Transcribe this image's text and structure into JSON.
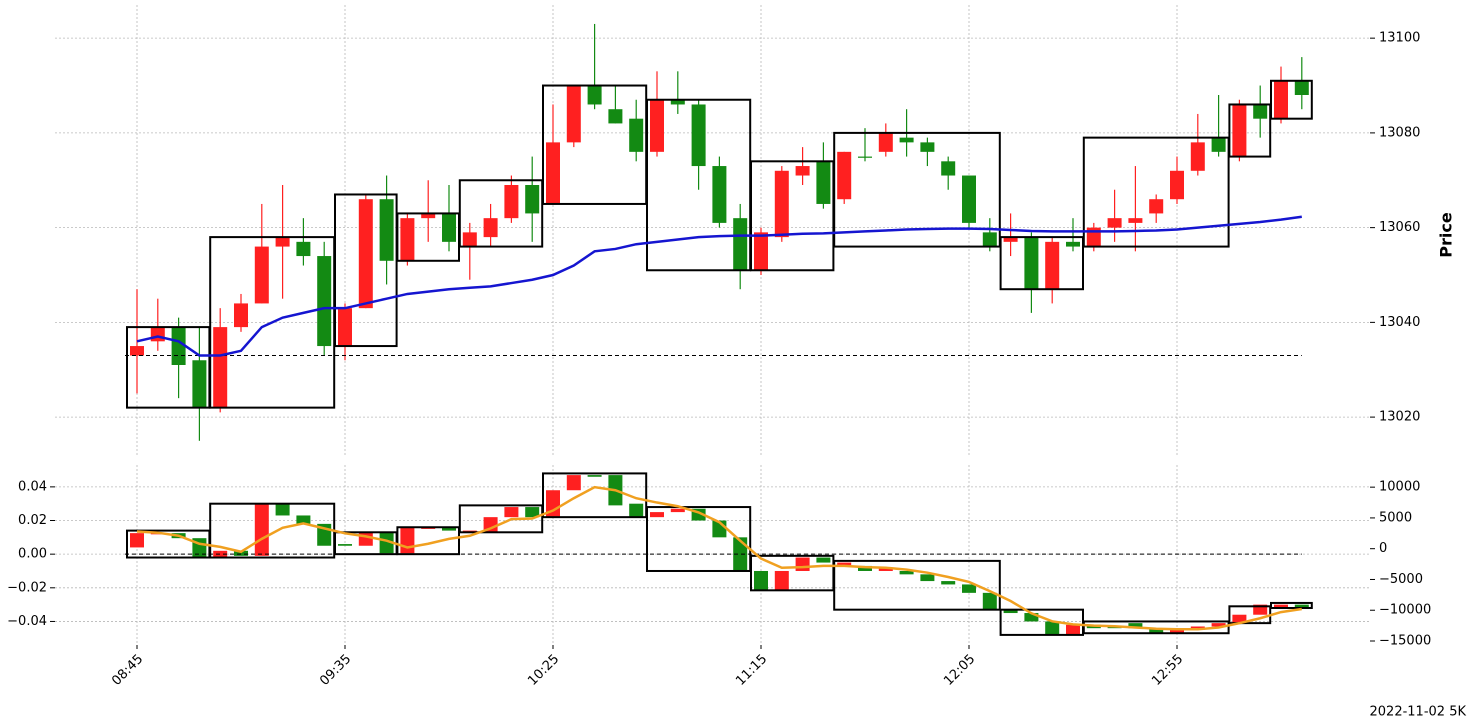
{
  "chart_data": [
    {
      "type": "candlestick",
      "y_axis_side": "right",
      "ylabel": "Price",
      "grid": true,
      "up_color": "#ff2020",
      "down_color": "#138a13",
      "open": [
        13033,
        13036,
        13039,
        13032,
        13022,
        13039,
        13044,
        13056,
        13057,
        13054,
        13035,
        13043,
        13066,
        13053,
        13062,
        13063,
        13056,
        13058,
        13062,
        13069,
        13065,
        13078,
        13090,
        13085,
        13083,
        13076,
        13087,
        13086,
        13073,
        13062,
        13051,
        13058,
        13071,
        13074,
        13066,
        13075,
        13076,
        13079,
        13078,
        13074,
        13071,
        13059,
        13057,
        13058,
        13047,
        13057,
        13056,
        13060,
        13061,
        13063,
        13066,
        13072,
        13079,
        13075,
        13086,
        13083,
        13091
      ],
      "high": [
        13047,
        13045,
        13041,
        13039,
        13043,
        13046,
        13065,
        13069,
        13062,
        13057,
        13044,
        13067,
        13071,
        13063,
        13070,
        13069,
        13061,
        13065,
        13071,
        13075,
        13086,
        13090,
        13103,
        13090,
        13087,
        13093,
        13093,
        13087,
        13075,
        13065,
        13060,
        13073,
        13077,
        13078,
        13076,
        13081,
        13082,
        13085,
        13079,
        13075,
        13071,
        13062,
        13063,
        13059,
        13058,
        13062,
        13061,
        13068,
        13073,
        13067,
        13075,
        13084,
        13088,
        13087,
        13090,
        13094,
        13096
      ],
      "low": [
        13025,
        13034,
        13024,
        13015,
        13021,
        13038,
        13044,
        13045,
        13052,
        13033,
        13032,
        13043,
        13048,
        13052,
        13057,
        13055,
        13049,
        13056,
        13061,
        13057,
        13065,
        13077,
        13085,
        13082,
        13074,
        13075,
        13084,
        13068,
        13060,
        13047,
        13050,
        13057,
        13069,
        13064,
        13065,
        13074,
        13075,
        13075,
        13073,
        13068,
        13060,
        13055,
        13054,
        13042,
        13044,
        13055,
        13055,
        13057,
        13055,
        13061,
        13065,
        13071,
        13075,
        13074,
        13079,
        13082,
        13085
      ],
      "close": [
        13035,
        13039,
        13031,
        13022,
        13039,
        13044,
        13056,
        13058,
        13054,
        13035,
        13043,
        13066,
        13053,
        13062,
        13063,
        13057,
        13059,
        13062,
        13069,
        13063,
        13078,
        13090,
        13086,
        13082,
        13076,
        13087,
        13086,
        13073,
        13061,
        13051,
        13059,
        13072,
        13073,
        13065,
        13076,
        13075,
        13080,
        13078,
        13076,
        13071,
        13061,
        13056,
        13058,
        13047,
        13057,
        13056,
        13060,
        13062,
        13062,
        13066,
        13072,
        13078,
        13076,
        13086,
        13083,
        13091,
        13088
      ],
      "lines": [
        {
          "color": "#1515d0",
          "values": [
            13036,
            13037,
            13036,
            13033,
            13033,
            13034,
            13039,
            13041,
            13042,
            13043,
            13043,
            13044,
            13045,
            13046,
            13046.5,
            13047,
            13047.3,
            13047.6,
            13048.3,
            13049,
            13050,
            13052,
            13055,
            13055.5,
            13056.5,
            13057,
            13057.5,
            13058,
            13058.2,
            13058.3,
            13058.3,
            13058.5,
            13058.7,
            13058.8,
            13059,
            13059.2,
            13059.4,
            13059.6,
            13059.7,
            13059.8,
            13059.8,
            13059.7,
            13059.5,
            13059.3,
            13059.2,
            13059.2,
            13059.2,
            13059.2,
            13059.3,
            13059.4,
            13059.6,
            13060,
            13060.4,
            13060.8,
            13061.2,
            13061.7,
            13062.3
          ]
        }
      ],
      "boxes": [
        {
          "start": 0,
          "end": 3,
          "low": 13022,
          "high": 13039
        },
        {
          "start": 4,
          "end": 9,
          "low": 13022,
          "high": 13058
        },
        {
          "start": 10,
          "end": 12,
          "low": 13035,
          "high": 13067
        },
        {
          "start": 13,
          "end": 15,
          "low": 13053,
          "high": 13063
        },
        {
          "start": 16,
          "end": 19,
          "low": 13056,
          "high": 13070
        },
        {
          "start": 20,
          "end": 24,
          "low": 13065,
          "high": 13090
        },
        {
          "start": 25,
          "end": 29,
          "low": 13051,
          "high": 13087
        },
        {
          "start": 30,
          "end": 33,
          "low": 13051,
          "high": 13074
        },
        {
          "start": 34,
          "end": 41,
          "low": 13056,
          "high": 13080
        },
        {
          "start": 42,
          "end": 45,
          "low": 13047,
          "high": 13058
        },
        {
          "start": 46,
          "end": 52,
          "low": 13056,
          "high": 13079
        },
        {
          "start": 53,
          "end": 54,
          "low": 13075,
          "high": 13086
        },
        {
          "start": 55,
          "end": 56,
          "low": 13083,
          "high": 13091
        }
      ],
      "hline": 13033,
      "ylim": [
        13012,
        13107
      ],
      "yticks": [
        13020,
        13040,
        13060,
        13080,
        13100
      ]
    },
    {
      "type": "candlestick",
      "y_axis_side": "left",
      "grid": true,
      "up_color": "#ff2020",
      "down_color": "#138a13",
      "categories": [
        "08:45",
        null,
        null,
        null,
        null,
        null,
        null,
        null,
        null,
        null,
        "09:35",
        null,
        null,
        null,
        null,
        null,
        null,
        null,
        null,
        null,
        "10:25",
        null,
        null,
        null,
        null,
        null,
        null,
        null,
        null,
        null,
        "11:15",
        null,
        null,
        null,
        null,
        null,
        null,
        null,
        null,
        null,
        "12:05",
        null,
        null,
        null,
        null,
        null,
        null,
        null,
        null,
        null,
        "12:55",
        null,
        null,
        null,
        null,
        null,
        null
      ],
      "open": [
        0.004,
        0.012,
        0.0125,
        0.0095,
        -0.002,
        0.002,
        -0.001,
        0.03,
        0.023,
        0.018,
        0.006,
        0.005,
        0.013,
        0.0005,
        0.015,
        0.016,
        0.013,
        0.013,
        0.022,
        0.028,
        0.022,
        0.038,
        0.047,
        0.047,
        0.03,
        0.022,
        0.025,
        0.027,
        0.02,
        0.01,
        -0.01,
        -0.021,
        -0.01,
        -0.002,
        -0.007,
        -0.007,
        -0.01,
        -0.01,
        -0.012,
        -0.016,
        -0.018,
        -0.023,
        -0.033,
        -0.035,
        -0.04,
        -0.048,
        -0.042,
        -0.043,
        -0.041,
        -0.044,
        -0.047,
        -0.045,
        -0.043,
        -0.041,
        -0.036,
        -0.032,
        -0.03
      ],
      "close": [
        0.0125,
        0.0125,
        0.0095,
        -0.002,
        0.002,
        -0.001,
        0.03,
        0.023,
        0.018,
        0.005,
        0.005,
        0.013,
        0.0005,
        0.016,
        0.016,
        0.014,
        0.014,
        0.022,
        0.028,
        0.022,
        0.038,
        0.047,
        0.046,
        0.029,
        0.022,
        0.025,
        0.027,
        0.02,
        0.01,
        -0.01,
        -0.021,
        -0.01,
        -0.002,
        -0.005,
        -0.005,
        -0.01,
        -0.008,
        -0.012,
        -0.016,
        -0.018,
        -0.023,
        -0.033,
        -0.035,
        -0.04,
        -0.048,
        -0.042,
        -0.044,
        -0.044,
        -0.044,
        -0.047,
        -0.045,
        -0.043,
        -0.041,
        -0.036,
        -0.03,
        -0.03,
        -0.032
      ],
      "lines": [
        {
          "color": "#f0a020",
          "axis": "y2",
          "values": [
            2800,
            2600,
            2100,
            800,
            300,
            -500,
            1600,
            3400,
            4100,
            3300,
            2500,
            2000,
            1300,
            200,
            800,
            1600,
            2100,
            3300,
            4800,
            4900,
            6200,
            8200,
            10000,
            9500,
            8200,
            7500,
            6900,
            5900,
            4300,
            1300,
            -1600,
            -3100,
            -3000,
            -2800,
            -2800,
            -3000,
            -3100,
            -3400,
            -3900,
            -4600,
            -5400,
            -6900,
            -8500,
            -10500,
            -11800,
            -12300,
            -12500,
            -12600,
            -12800,
            -13000,
            -13100,
            -13100,
            -12800,
            -12100,
            -11300,
            -10300,
            -9800
          ]
        }
      ],
      "boxes": [
        {
          "start": 0,
          "end": 3,
          "low": -0.002,
          "high": 0.014
        },
        {
          "start": 4,
          "end": 9,
          "low": -0.002,
          "high": 0.03
        },
        {
          "start": 10,
          "end": 12,
          "low": 0,
          "high": 0.013
        },
        {
          "start": 13,
          "end": 15,
          "low": 0,
          "high": 0.016
        },
        {
          "start": 16,
          "end": 19,
          "low": 0.013,
          "high": 0.029
        },
        {
          "start": 20,
          "end": 24,
          "low": 0.022,
          "high": 0.048
        },
        {
          "start": 25,
          "end": 29,
          "low": -0.01,
          "high": 0.028
        },
        {
          "start": 30,
          "end": 33,
          "low": -0.0215,
          "high": -0.001
        },
        {
          "start": 34,
          "end": 41,
          "low": -0.033,
          "high": -0.004
        },
        {
          "start": 42,
          "end": 45,
          "low": -0.048,
          "high": -0.033
        },
        {
          "start": 46,
          "end": 52,
          "low": -0.047,
          "high": -0.04
        },
        {
          "start": 53,
          "end": 54,
          "low": -0.041,
          "high": -0.031
        },
        {
          "start": 55,
          "end": 56,
          "low": -0.032,
          "high": -0.029
        }
      ],
      "hline": 0,
      "ylim": [
        -0.054,
        0.053
      ],
      "yticks": [
        {
          "value": -0.04,
          "label": "−0.04"
        },
        {
          "value": -0.02,
          "label": "−0.02"
        },
        {
          "value": 0,
          "label": "0.00"
        },
        0.02,
        0.04
      ],
      "y2lim": [
        -15650,
        13600
      ],
      "y2ticks": [
        {
          "value": -15000,
          "label": "−15000"
        },
        {
          "value": -10000,
          "label": "−10000"
        },
        {
          "value": -5000,
          "label": "−5000"
        },
        0,
        5000,
        10000
      ]
    }
  ],
  "footer": "2022-11-02 5K"
}
